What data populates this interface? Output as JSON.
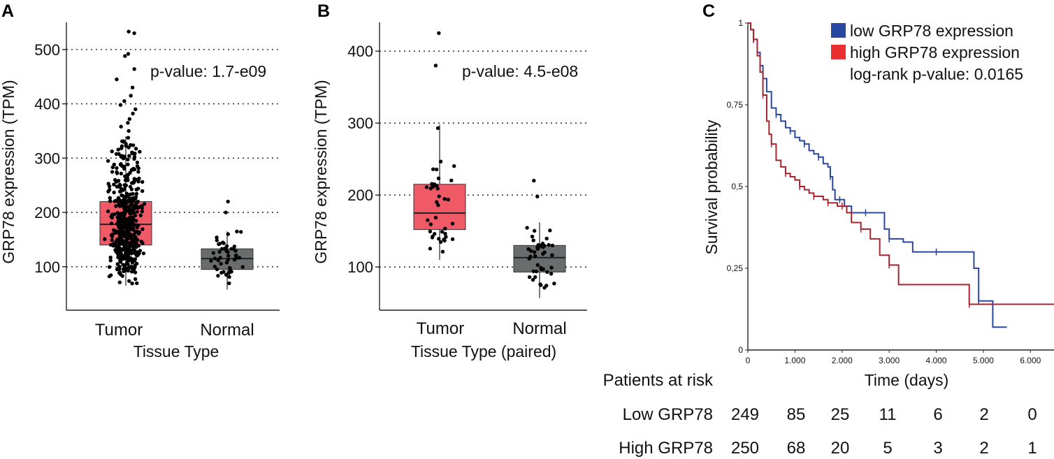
{
  "chart_data": [
    {
      "panel": "A",
      "type": "box",
      "ylabel": "GRP78 expression (TPM)",
      "xlabel": "Tissue Type",
      "ylim": [
        20,
        550
      ],
      "yticks": [
        100,
        200,
        300,
        400,
        500
      ],
      "annotation": "p-value: 1.7-e09",
      "categories": [
        "Tumor",
        "Normal"
      ],
      "boxes": [
        {
          "name": "Tumor",
          "color": "#ef5a66",
          "q1": 140,
          "median": 178,
          "q3": 220,
          "whisker_low": 65,
          "whisker_high": 340
        },
        {
          "name": "Normal",
          "color": "#6a6d6d",
          "q1": 95,
          "median": 115,
          "q3": 133,
          "whisker_low": 58,
          "whisker_high": 165
        }
      ],
      "outliers": [
        {
          "category": "Tumor",
          "values": [
            533,
            530,
            492,
            488,
            464,
            445,
            430,
            415,
            405,
            398,
            390,
            382,
            372,
            365,
            358,
            350
          ]
        },
        {
          "category": "Normal",
          "values": [
            220,
            200
          ]
        }
      ]
    },
    {
      "panel": "B",
      "type": "box",
      "ylabel": "GRP78 expression (TPM)",
      "xlabel": "Tissue Type (paired)",
      "ylim": [
        40,
        440
      ],
      "yticks": [
        100,
        200,
        300,
        400
      ],
      "annotation": "p-value: 4.5-e08",
      "categories": [
        "Tumor",
        "Normal"
      ],
      "boxes": [
        {
          "name": "Tumor",
          "color": "#ef5a66",
          "q1": 152,
          "median": 175,
          "q3": 215,
          "whisker_low": 110,
          "whisker_high": 298
        },
        {
          "name": "Normal",
          "color": "#6a6d6d",
          "q1": 93,
          "median": 113,
          "q3": 130,
          "whisker_low": 57,
          "whisker_high": 162
        }
      ],
      "outliers": [
        {
          "category": "Tumor",
          "values": [
            425,
            380
          ]
        },
        {
          "category": "Normal",
          "values": [
            220,
            198
          ]
        }
      ]
    },
    {
      "panel": "C",
      "type": "line",
      "subtype": "kaplan-meier",
      "ylabel": "Survival probability",
      "xlabel": "Time (days)",
      "xlim": [
        0,
        6500
      ],
      "ylim": [
        0,
        1
      ],
      "xticks": [
        "0",
        "1.000",
        "2.000",
        "3.000",
        "4.000",
        "5.000",
        "6.000"
      ],
      "xtick_values": [
        0,
        1000,
        2000,
        3000,
        4000,
        5000,
        6000
      ],
      "yticks": [
        "0",
        "0,25",
        "0,5",
        "0,75",
        "1"
      ],
      "ytick_values": [
        0,
        0.25,
        0.5,
        0.75,
        1
      ],
      "legend": [
        {
          "label": "low GRP78 expression",
          "color": "#2748a0"
        },
        {
          "label": "high GRP78 expression",
          "color": "#e83030"
        }
      ],
      "annotation": "log-rank p-value: 0.0165",
      "series": [
        {
          "name": "low GRP78 expression",
          "color": "#2a46a0",
          "x": [
            0,
            60,
            120,
            200,
            260,
            320,
            400,
            500,
            600,
            700,
            800,
            900,
            1000,
            1100,
            1200,
            1300,
            1400,
            1500,
            1600,
            1700,
            1750,
            1800,
            1850,
            1950,
            2050,
            2200,
            2500,
            2800,
            2900,
            3000,
            3300,
            3500,
            4000,
            4400,
            4800,
            4900,
            5200,
            5500
          ],
          "y": [
            1,
            0.98,
            0.95,
            0.91,
            0.87,
            0.83,
            0.79,
            0.74,
            0.72,
            0.7,
            0.68,
            0.67,
            0.65,
            0.64,
            0.63,
            0.61,
            0.6,
            0.59,
            0.57,
            0.56,
            0.53,
            0.49,
            0.46,
            0.46,
            0.44,
            0.42,
            0.42,
            0.42,
            0.37,
            0.34,
            0.33,
            0.3,
            0.3,
            0.3,
            0.25,
            0.15,
            0.07,
            0.07
          ]
        },
        {
          "name": "high GRP78 expression",
          "color": "#a8242c",
          "x": [
            0,
            60,
            120,
            200,
            260,
            320,
            400,
            450,
            500,
            600,
            700,
            800,
            900,
            1000,
            1100,
            1200,
            1300,
            1400,
            1500,
            1600,
            1700,
            1800,
            1900,
            2000,
            2100,
            2200,
            2400,
            2600,
            2800,
            3000,
            3200,
            4000,
            4700,
            5000,
            6500
          ],
          "y": [
            1,
            0.98,
            0.95,
            0.9,
            0.85,
            0.78,
            0.7,
            0.66,
            0.63,
            0.58,
            0.56,
            0.54,
            0.53,
            0.52,
            0.5,
            0.49,
            0.48,
            0.47,
            0.47,
            0.46,
            0.45,
            0.45,
            0.44,
            0.44,
            0.42,
            0.39,
            0.37,
            0.34,
            0.29,
            0.26,
            0.2,
            0.2,
            0.14,
            0.14,
            0.14
          ]
        }
      ]
    }
  ],
  "risk_table": {
    "title": "Patients at risk",
    "rows": [
      {
        "label": "Low GRP78",
        "values": [
          "249",
          "85",
          "25",
          "11",
          "6",
          "2",
          "0"
        ]
      },
      {
        "label": "High GRP78",
        "values": [
          "250",
          "68",
          "20",
          "5",
          "3",
          "2",
          "1"
        ]
      }
    ]
  }
}
